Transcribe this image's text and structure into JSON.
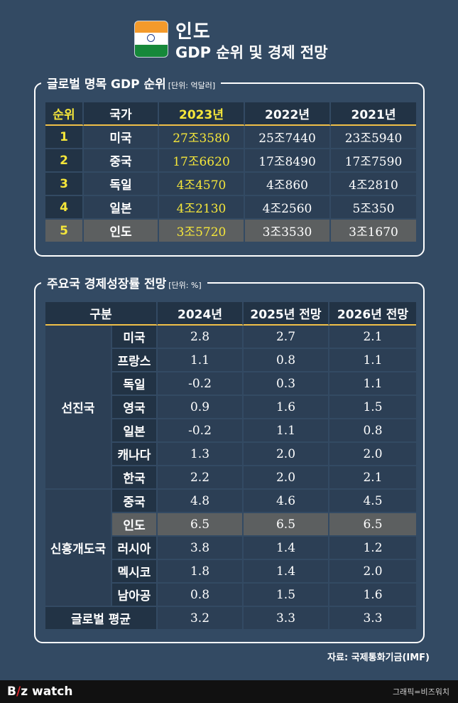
{
  "header": {
    "title": "인도",
    "subtitle": "GDP 순위 및 경제 전망"
  },
  "gdp_panel": {
    "title": "글로벌 명목 GDP 순위",
    "unit": "[단위: 억달러]",
    "headers": [
      "순위",
      "국가",
      "2023년",
      "2022년",
      "2021년"
    ],
    "rows": [
      {
        "rank": "1",
        "country": "미국",
        "y2023": "27조3580",
        "y2022": "25조7440",
        "y2021": "23조5940"
      },
      {
        "rank": "2",
        "country": "중국",
        "y2023": "17조6620",
        "y2022": "17조8490",
        "y2021": "17조7590"
      },
      {
        "rank": "3",
        "country": "독일",
        "y2023": "4조4570",
        "y2022": "4조860",
        "y2021": "4조2810"
      },
      {
        "rank": "4",
        "country": "일본",
        "y2023": "4조2130",
        "y2022": "4조2560",
        "y2021": "5조350"
      },
      {
        "rank": "5",
        "country": "인도",
        "y2023": "3조5720",
        "y2022": "3조3530",
        "y2021": "3조1670"
      }
    ]
  },
  "growth_panel": {
    "title": "주요국 경제성장률 전망",
    "unit": "[단위: %]",
    "headers": [
      "구분",
      "2024년",
      "2025년 전망",
      "2026년 전망"
    ],
    "groups": [
      {
        "name": "선진국",
        "rows": [
          {
            "country": "미국",
            "y2024": "2.8",
            "y2025": "2.7",
            "y2026": "2.1"
          },
          {
            "country": "프랑스",
            "y2024": "1.1",
            "y2025": "0.8",
            "y2026": "1.1"
          },
          {
            "country": "독일",
            "y2024": "-0.2",
            "y2025": "0.3",
            "y2026": "1.1"
          },
          {
            "country": "영국",
            "y2024": "0.9",
            "y2025": "1.6",
            "y2026": "1.5"
          },
          {
            "country": "일본",
            "y2024": "-0.2",
            "y2025": "1.1",
            "y2026": "0.8"
          },
          {
            "country": "캐나다",
            "y2024": "1.3",
            "y2025": "2.0",
            "y2026": "2.0"
          },
          {
            "country": "한국",
            "y2024": "2.2",
            "y2025": "2.0",
            "y2026": "2.1"
          }
        ]
      },
      {
        "name": "신흥개도국",
        "rows": [
          {
            "country": "중국",
            "y2024": "4.8",
            "y2025": "4.6",
            "y2026": "4.5"
          },
          {
            "country": "인도",
            "y2024": "6.5",
            "y2025": "6.5",
            "y2026": "6.5"
          },
          {
            "country": "러시아",
            "y2024": "3.8",
            "y2025": "1.4",
            "y2026": "1.2"
          },
          {
            "country": "멕시코",
            "y2024": "1.8",
            "y2025": "1.4",
            "y2026": "2.0"
          },
          {
            "country": "남아공",
            "y2024": "0.8",
            "y2025": "1.5",
            "y2026": "1.6"
          }
        ]
      }
    ],
    "global": {
      "label": "글로벌 평균",
      "y2024": "3.2",
      "y2025": "3.3",
      "y2026": "3.3"
    }
  },
  "source": "자료: 국제통화기금(IMF)",
  "footer": {
    "logo_prefix": "B",
    "logo_mark": "/",
    "logo_rest": "z watch",
    "credit": "그래픽=비즈워치"
  },
  "colors": {
    "background": "#334a63",
    "highlight_year": "#f5e63a",
    "header_rule": "#f0c048",
    "highlight_row": "#5c5f60"
  }
}
